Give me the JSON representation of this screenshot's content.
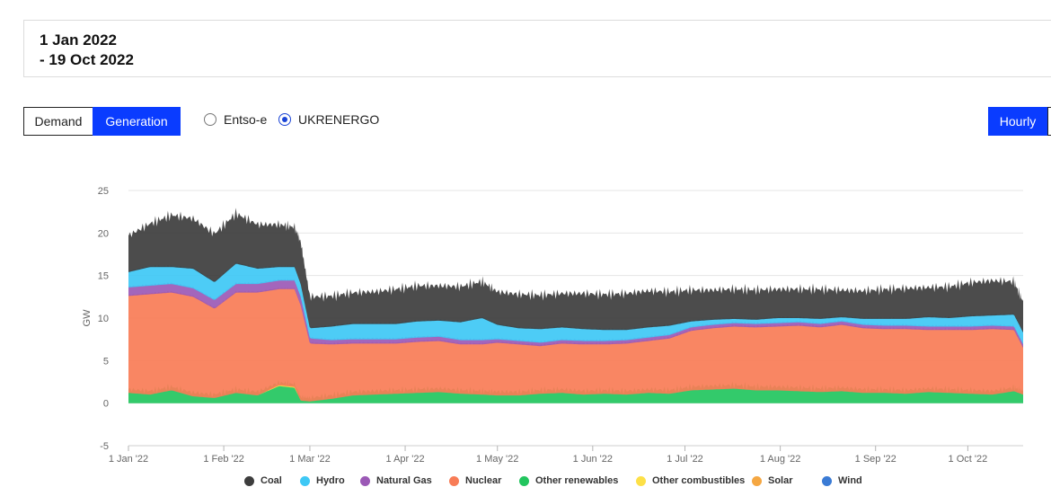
{
  "date_range": {
    "start": "1 Jan 2022",
    "end": "- 19 Oct 2022"
  },
  "view_toggle": {
    "demand_label": "Demand",
    "generation_label": "Generation",
    "selected": "Generation"
  },
  "source": {
    "options": [
      "Entso-e",
      "UKRENERGO"
    ],
    "selected": "UKRENERGO"
  },
  "resolution": {
    "label": "Hourly"
  },
  "chart_data": {
    "type": "area",
    "stacked": true,
    "ylabel": "GW",
    "xlabel": "",
    "ylim": [
      -5,
      25
    ],
    "yticks": [
      -5,
      0,
      5,
      10,
      15,
      20,
      25
    ],
    "grid": true,
    "legend_position": "bottom",
    "x_start": "2022-01-01",
    "x_end": "2022-10-19",
    "xticks": [
      {
        "date": "2022-01-01",
        "label": "1 Jan '22"
      },
      {
        "date": "2022-02-01",
        "label": "1 Feb '22"
      },
      {
        "date": "2022-03-01",
        "label": "1 Mar '22"
      },
      {
        "date": "2022-04-01",
        "label": "1 Apr '22"
      },
      {
        "date": "2022-05-01",
        "label": "1 May '22"
      },
      {
        "date": "2022-06-01",
        "label": "1 Jun '22"
      },
      {
        "date": "2022-07-01",
        "label": "1 Jul '22"
      },
      {
        "date": "2022-08-01",
        "label": "1 Aug '22"
      },
      {
        "date": "2022-09-01",
        "label": "1 Sep '22"
      },
      {
        "date": "2022-10-01",
        "label": "1 Oct '22"
      }
    ],
    "x": [
      "2022-01-01",
      "2022-01-08",
      "2022-01-15",
      "2022-01-22",
      "2022-01-29",
      "2022-02-05",
      "2022-02-12",
      "2022-02-19",
      "2022-02-24",
      "2022-02-26",
      "2022-03-01",
      "2022-03-08",
      "2022-03-15",
      "2022-03-22",
      "2022-03-29",
      "2022-04-05",
      "2022-04-12",
      "2022-04-19",
      "2022-04-26",
      "2022-05-01",
      "2022-05-08",
      "2022-05-15",
      "2022-05-22",
      "2022-05-29",
      "2022-06-05",
      "2022-06-12",
      "2022-06-19",
      "2022-06-26",
      "2022-07-03",
      "2022-07-10",
      "2022-07-17",
      "2022-07-24",
      "2022-07-31",
      "2022-08-07",
      "2022-08-14",
      "2022-08-21",
      "2022-08-28",
      "2022-09-04",
      "2022-09-11",
      "2022-09-18",
      "2022-09-25",
      "2022-10-02",
      "2022-10-09",
      "2022-10-16",
      "2022-10-19"
    ],
    "series": [
      {
        "name": "Other renewables",
        "color": "#22c55e",
        "values": [
          1.2,
          1.0,
          1.5,
          0.8,
          0.6,
          1.2,
          0.9,
          2.0,
          1.8,
          0.3,
          0.2,
          0.5,
          0.9,
          1.0,
          1.1,
          1.2,
          1.3,
          1.1,
          1.0,
          0.9,
          0.9,
          1.1,
          1.2,
          1.0,
          1.1,
          1.0,
          1.2,
          1.1,
          1.5,
          1.6,
          1.7,
          1.5,
          1.5,
          1.4,
          1.3,
          1.4,
          1.2,
          1.2,
          1.1,
          1.3,
          1.2,
          1.1,
          1.0,
          1.4,
          1.0
        ]
      },
      {
        "name": "Other combustibles",
        "color": "#fde047",
        "values": [
          0,
          0,
          0,
          0,
          0,
          0,
          0,
          0.1,
          0.1,
          0,
          0,
          0,
          0,
          0,
          0,
          0,
          0,
          0,
          0,
          0,
          0,
          0,
          0,
          0,
          0,
          0,
          0,
          0,
          0,
          0,
          0,
          0,
          0,
          0,
          0,
          0,
          0,
          0,
          0,
          0,
          0,
          0,
          0,
          0,
          0
        ]
      },
      {
        "name": "Solar",
        "color": "#f5a742",
        "values": [
          0,
          0,
          0,
          0,
          0,
          0,
          0,
          0,
          0,
          0,
          0,
          0,
          0,
          0,
          0,
          0,
          0,
          0,
          0,
          0,
          0,
          0,
          0,
          0,
          0,
          0,
          0,
          0,
          0,
          0,
          0,
          0,
          0,
          0,
          0,
          0,
          0,
          0,
          0,
          0,
          0,
          0,
          0,
          0,
          0
        ]
      },
      {
        "name": "Wind",
        "color": "#3a7bd5",
        "values": [
          0,
          0,
          0,
          0,
          0,
          0,
          0,
          0,
          0,
          0,
          0,
          0,
          0,
          0,
          0,
          0,
          0,
          0,
          0,
          0,
          0,
          0,
          0,
          0,
          0,
          0,
          0,
          0,
          0,
          0,
          0,
          0,
          0,
          0,
          0,
          0,
          0,
          0,
          0,
          0,
          0,
          0,
          0,
          0,
          0
        ]
      },
      {
        "name": "Nuclear",
        "color": "#f87c56",
        "values": [
          11.4,
          11.8,
          11.5,
          11.7,
          10.5,
          11.8,
          12.1,
          11.3,
          11.5,
          11.2,
          6.8,
          6.4,
          6.1,
          6.0,
          5.9,
          6.0,
          6.0,
          5.8,
          5.9,
          6.2,
          6.0,
          5.6,
          5.8,
          5.9,
          5.8,
          6.0,
          6.1,
          6.5,
          7.0,
          7.2,
          7.3,
          7.4,
          7.5,
          7.7,
          7.6,
          7.8,
          7.6,
          7.5,
          7.6,
          7.3,
          7.4,
          7.5,
          7.7,
          7.2,
          5.5
        ]
      },
      {
        "name": "Natural Gas",
        "color": "#9b59b6",
        "values": [
          1.0,
          1.0,
          1.0,
          1.0,
          1.0,
          1.0,
          1.0,
          1.0,
          1.0,
          1.0,
          0.6,
          0.5,
          0.5,
          0.5,
          0.5,
          0.5,
          0.5,
          0.5,
          0.5,
          0.4,
          0.4,
          0.4,
          0.4,
          0.4,
          0.4,
          0.4,
          0.4,
          0.4,
          0.4,
          0.4,
          0.4,
          0.4,
          0.4,
          0.4,
          0.4,
          0.4,
          0.4,
          0.4,
          0.4,
          0.4,
          0.4,
          0.4,
          0.4,
          0.4,
          0.4
        ]
      },
      {
        "name": "Hydro",
        "color": "#3ec8f5",
        "values": [
          1.8,
          2.2,
          2.0,
          2.3,
          2.1,
          2.4,
          1.8,
          1.6,
          1.6,
          1.5,
          1.2,
          1.6,
          1.8,
          1.8,
          1.8,
          1.9,
          1.9,
          2.1,
          2.6,
          1.7,
          1.5,
          1.6,
          1.5,
          1.4,
          1.3,
          1.2,
          1.2,
          1.1,
          0.7,
          0.6,
          0.5,
          0.5,
          0.6,
          0.5,
          0.6,
          0.5,
          0.7,
          0.8,
          0.8,
          1.1,
          1.0,
          1.2,
          1.2,
          1.4,
          1.4
        ]
      },
      {
        "name": "Coal",
        "color": "#3d3d3d",
        "values": [
          3.6,
          4.4,
          5.4,
          5.2,
          5.0,
          5.2,
          4.5,
          4.3,
          4.0,
          4.3,
          3.0,
          2.9,
          3.0,
          3.1,
          3.4,
          3.5,
          3.4,
          3.5,
          3.6,
          3.2,
          3.3,
          3.3,
          3.3,
          3.5,
          3.5,
          3.6,
          3.6,
          3.3,
          3.0,
          2.8,
          2.8,
          2.8,
          2.7,
          2.7,
          2.8,
          2.5,
          2.6,
          2.8,
          2.9,
          2.8,
          3.0,
          3.3,
          3.4,
          3.2,
          2.9
        ]
      }
    ]
  }
}
